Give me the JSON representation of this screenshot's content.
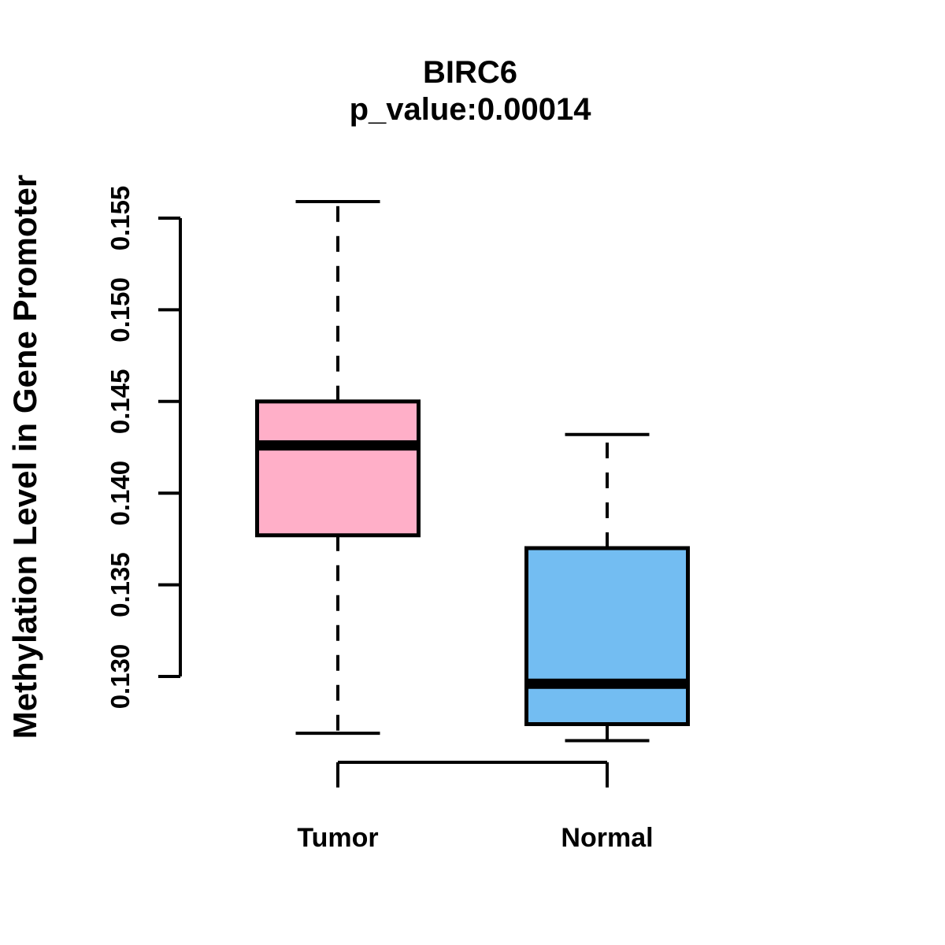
{
  "chart_data": {
    "type": "boxplot",
    "title": "BIRC6",
    "subtitle": "p_value:0.00014",
    "ylabel": "Methylation Level in Gene Promoter",
    "xlabel": "",
    "categories": [
      "Tumor",
      "Normal"
    ],
    "y_ticks": [
      0.155,
      0.15,
      0.145,
      0.14,
      0.135,
      0.13
    ],
    "y_tick_decimals": 3,
    "axis_range": [
      0.13,
      0.155
    ],
    "grid": false,
    "legend": false,
    "background_color": "#FFFFFF",
    "line_color": "#000000",
    "groups": [
      {
        "name": "Tumor",
        "fill_color": "#FFAFC8",
        "whisker_low": 0.1269,
        "q1": 0.1377,
        "median": 0.1426,
        "q3": 0.145,
        "whisker_high": 0.1559
      },
      {
        "name": "Normal",
        "fill_color": "#73BDF2",
        "whisker_low": 0.1265,
        "q1": 0.1274,
        "median": 0.1296,
        "q3": 0.137,
        "whisker_high": 0.1432
      }
    ]
  }
}
